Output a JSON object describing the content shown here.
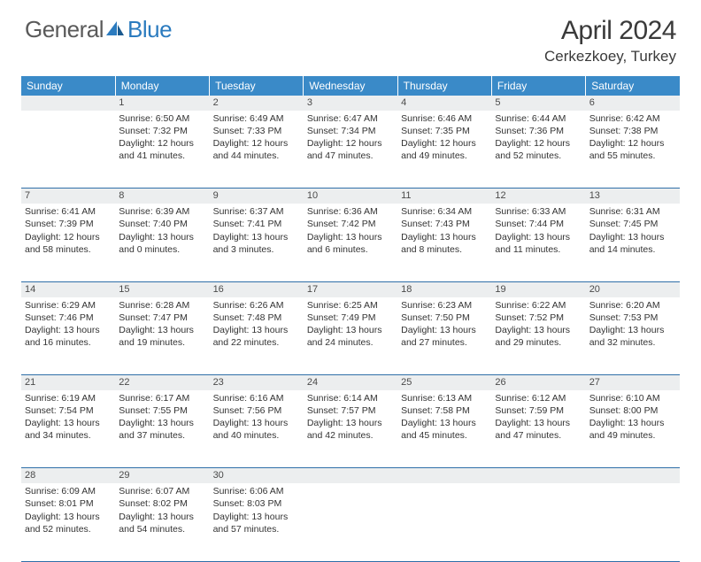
{
  "logo": {
    "text1": "General",
    "text2": "Blue"
  },
  "title": "April 2024",
  "location": "Cerkezkoey, Turkey",
  "colors": {
    "header_bg": "#3a8ac8",
    "header_text": "#ffffff",
    "daynum_bg": "#eceeef",
    "border": "#2f6fa8",
    "text": "#333333",
    "logo_gray": "#5a5a5a",
    "logo_blue": "#2b7bbf"
  },
  "weekdays": [
    "Sunday",
    "Monday",
    "Tuesday",
    "Wednesday",
    "Thursday",
    "Friday",
    "Saturday"
  ],
  "weeks": [
    {
      "nums": [
        "",
        "1",
        "2",
        "3",
        "4",
        "5",
        "6"
      ],
      "cells": [
        "",
        "Sunrise: 6:50 AM\nSunset: 7:32 PM\nDaylight: 12 hours and 41 minutes.",
        "Sunrise: 6:49 AM\nSunset: 7:33 PM\nDaylight: 12 hours and 44 minutes.",
        "Sunrise: 6:47 AM\nSunset: 7:34 PM\nDaylight: 12 hours and 47 minutes.",
        "Sunrise: 6:46 AM\nSunset: 7:35 PM\nDaylight: 12 hours and 49 minutes.",
        "Sunrise: 6:44 AM\nSunset: 7:36 PM\nDaylight: 12 hours and 52 minutes.",
        "Sunrise: 6:42 AM\nSunset: 7:38 PM\nDaylight: 12 hours and 55 minutes."
      ]
    },
    {
      "nums": [
        "7",
        "8",
        "9",
        "10",
        "11",
        "12",
        "13"
      ],
      "cells": [
        "Sunrise: 6:41 AM\nSunset: 7:39 PM\nDaylight: 12 hours and 58 minutes.",
        "Sunrise: 6:39 AM\nSunset: 7:40 PM\nDaylight: 13 hours and 0 minutes.",
        "Sunrise: 6:37 AM\nSunset: 7:41 PM\nDaylight: 13 hours and 3 minutes.",
        "Sunrise: 6:36 AM\nSunset: 7:42 PM\nDaylight: 13 hours and 6 minutes.",
        "Sunrise: 6:34 AM\nSunset: 7:43 PM\nDaylight: 13 hours and 8 minutes.",
        "Sunrise: 6:33 AM\nSunset: 7:44 PM\nDaylight: 13 hours and 11 minutes.",
        "Sunrise: 6:31 AM\nSunset: 7:45 PM\nDaylight: 13 hours and 14 minutes."
      ]
    },
    {
      "nums": [
        "14",
        "15",
        "16",
        "17",
        "18",
        "19",
        "20"
      ],
      "cells": [
        "Sunrise: 6:29 AM\nSunset: 7:46 PM\nDaylight: 13 hours and 16 minutes.",
        "Sunrise: 6:28 AM\nSunset: 7:47 PM\nDaylight: 13 hours and 19 minutes.",
        "Sunrise: 6:26 AM\nSunset: 7:48 PM\nDaylight: 13 hours and 22 minutes.",
        "Sunrise: 6:25 AM\nSunset: 7:49 PM\nDaylight: 13 hours and 24 minutes.",
        "Sunrise: 6:23 AM\nSunset: 7:50 PM\nDaylight: 13 hours and 27 minutes.",
        "Sunrise: 6:22 AM\nSunset: 7:52 PM\nDaylight: 13 hours and 29 minutes.",
        "Sunrise: 6:20 AM\nSunset: 7:53 PM\nDaylight: 13 hours and 32 minutes."
      ]
    },
    {
      "nums": [
        "21",
        "22",
        "23",
        "24",
        "25",
        "26",
        "27"
      ],
      "cells": [
        "Sunrise: 6:19 AM\nSunset: 7:54 PM\nDaylight: 13 hours and 34 minutes.",
        "Sunrise: 6:17 AM\nSunset: 7:55 PM\nDaylight: 13 hours and 37 minutes.",
        "Sunrise: 6:16 AM\nSunset: 7:56 PM\nDaylight: 13 hours and 40 minutes.",
        "Sunrise: 6:14 AM\nSunset: 7:57 PM\nDaylight: 13 hours and 42 minutes.",
        "Sunrise: 6:13 AM\nSunset: 7:58 PM\nDaylight: 13 hours and 45 minutes.",
        "Sunrise: 6:12 AM\nSunset: 7:59 PM\nDaylight: 13 hours and 47 minutes.",
        "Sunrise: 6:10 AM\nSunset: 8:00 PM\nDaylight: 13 hours and 49 minutes."
      ]
    },
    {
      "nums": [
        "28",
        "29",
        "30",
        "",
        "",
        "",
        ""
      ],
      "cells": [
        "Sunrise: 6:09 AM\nSunset: 8:01 PM\nDaylight: 13 hours and 52 minutes.",
        "Sunrise: 6:07 AM\nSunset: 8:02 PM\nDaylight: 13 hours and 54 minutes.",
        "Sunrise: 6:06 AM\nSunset: 8:03 PM\nDaylight: 13 hours and 57 minutes.",
        "",
        "",
        "",
        ""
      ]
    }
  ]
}
